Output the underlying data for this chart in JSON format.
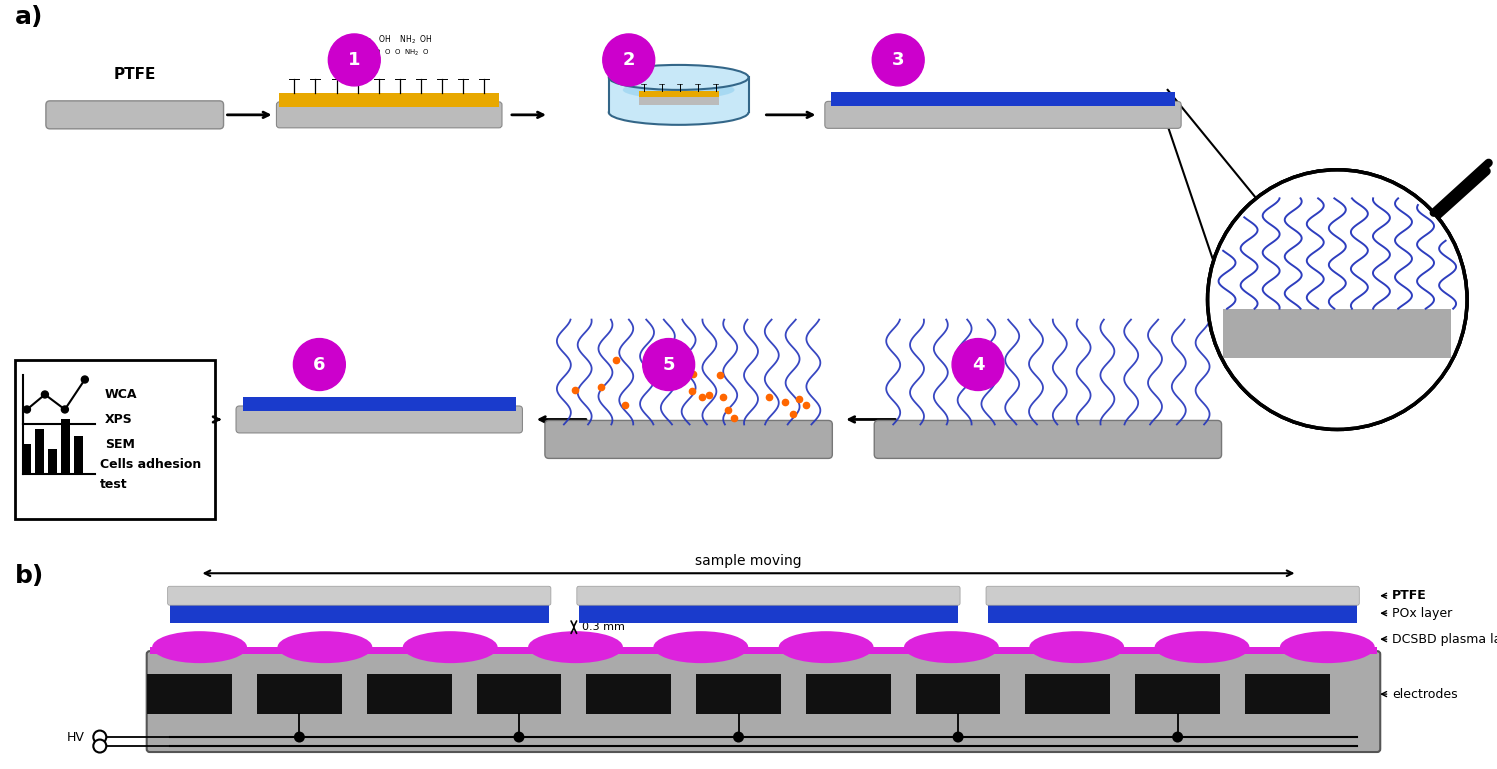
{
  "fig_width": 14.97,
  "fig_height": 7.69,
  "bg_color": "#ffffff",
  "magenta": "#cc00cc",
  "blue_layer": "#1a3bcc",
  "gray_layer": "#bbbbbb",
  "yellow_layer": "#e8a800",
  "plasma_color": "#dd22dd",
  "panel_a_label": "a)",
  "panel_b_label": "b)",
  "ptfe_label": "PTFE",
  "wca_label": "WCA",
  "xps_label": "XPS",
  "sem_label": "SEM",
  "cells_label": "Cells adhesion",
  "cells_label2": "test",
  "sample_moving_label": "sample moving",
  "ptfe_annot": "PTFE",
  "pox_annot": "POx layer",
  "dcsbd_annot": "DCSBD plasma layer",
  "electrodes_annot": "electrodes",
  "hv_label": "HV",
  "mm_label": "0.3 mm"
}
